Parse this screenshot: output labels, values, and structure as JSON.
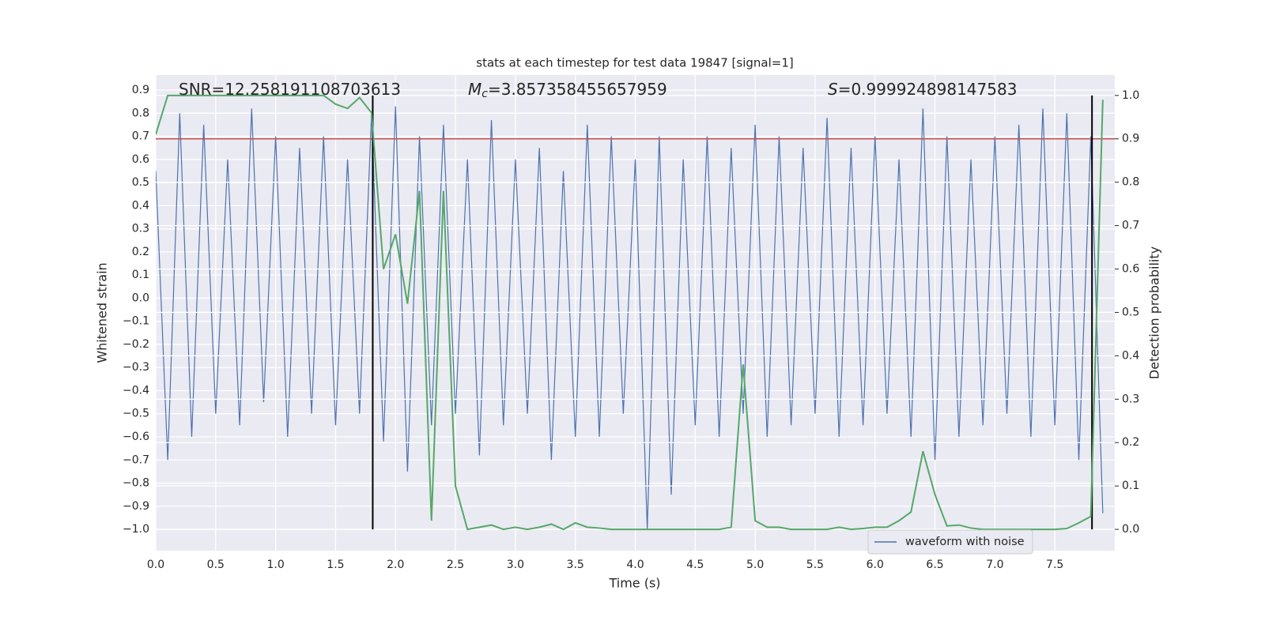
{
  "chart_data": {
    "type": "line",
    "title": "stats at each timestep for test data 19847 [signal=1]",
    "xlabel": "Time (s)",
    "ylabel": "Whitened strain",
    "y2label": "Detection probability",
    "annotations": [
      {
        "text": "SNR=12.258191108703613"
      },
      {
        "symbol": "M",
        "subscript": "c",
        "text": "=3.857358455657959"
      },
      {
        "symbol": "S",
        "text": "=0.999924898147583"
      }
    ],
    "x": [
      0.0,
      0.1,
      0.2,
      0.3,
      0.4,
      0.5,
      0.6,
      0.7,
      0.8,
      0.9,
      1.0,
      1.1,
      1.2,
      1.3,
      1.4,
      1.5,
      1.6,
      1.7,
      1.8,
      1.9,
      2.0,
      2.1,
      2.2,
      2.3,
      2.4,
      2.5,
      2.6,
      2.7,
      2.8,
      2.9,
      3.0,
      3.1,
      3.2,
      3.3,
      3.4,
      3.5,
      3.6,
      3.7,
      3.8,
      3.9,
      4.0,
      4.1,
      4.2,
      4.3,
      4.4,
      4.5,
      4.6,
      4.7,
      4.8,
      4.9,
      5.0,
      5.1,
      5.2,
      5.3,
      5.4,
      5.5,
      5.6,
      5.7,
      5.8,
      5.9,
      6.0,
      6.1,
      6.2,
      6.3,
      6.4,
      6.5,
      6.6,
      6.7,
      6.8,
      6.9,
      7.0,
      7.1,
      7.2,
      7.3,
      7.4,
      7.5,
      7.6,
      7.7,
      7.8,
      7.9
    ],
    "series": [
      {
        "name": "waveform with noise",
        "color": "#4c72b0",
        "values": [
          0.55,
          -0.7,
          0.8,
          -0.6,
          0.75,
          -0.5,
          0.6,
          -0.55,
          0.82,
          -0.45,
          0.7,
          -0.6,
          0.65,
          -0.5,
          0.7,
          -0.55,
          0.6,
          -0.5,
          0.8,
          -0.62,
          0.83,
          -0.75,
          0.7,
          -0.55,
          0.75,
          -0.5,
          0.6,
          -0.68,
          0.77,
          -0.55,
          0.6,
          -0.5,
          0.65,
          -0.7,
          0.55,
          -0.6,
          0.75,
          -0.6,
          0.7,
          -0.5,
          0.6,
          -1.0,
          0.7,
          -0.85,
          0.6,
          -0.55,
          0.7,
          -0.6,
          0.65,
          -0.5,
          0.75,
          -0.6,
          0.7,
          -0.55,
          0.65,
          -0.5,
          0.78,
          -0.6,
          0.65,
          -0.55,
          0.7,
          -0.5,
          0.6,
          -0.6,
          0.82,
          -0.7,
          0.7,
          -0.6,
          0.6,
          -0.55,
          0.7,
          -0.5,
          0.75,
          -0.6,
          0.82,
          -0.55,
          0.8,
          -0.7,
          0.7,
          -0.93
        ]
      },
      {
        "color": "#55a868",
        "axis": "y2",
        "values": [
          0.91,
          1.0,
          1.0,
          1.0,
          1.0,
          1.0,
          1.0,
          1.0,
          1.0,
          1.0,
          1.0,
          1.0,
          1.0,
          1.0,
          1.0,
          0.98,
          0.97,
          0.995,
          0.96,
          0.6,
          0.68,
          0.52,
          0.78,
          0.02,
          0.78,
          0.1,
          0.0,
          0.005,
          0.01,
          0.0,
          0.005,
          0.0,
          0.005,
          0.012,
          0.0,
          0.015,
          0.005,
          0.003,
          0.0,
          0.0,
          0.0,
          0.0,
          0.0,
          0.0,
          0.0,
          0.0,
          0.0,
          0.0,
          0.005,
          0.38,
          0.02,
          0.005,
          0.005,
          0.0,
          0.0,
          0.0,
          0.0,
          0.005,
          0.0,
          0.002,
          0.005,
          0.005,
          0.02,
          0.04,
          0.18,
          0.08,
          0.008,
          0.01,
          0.003,
          0.0,
          0.0,
          0.0,
          0.0,
          0.0,
          0.0,
          0.0,
          0.002,
          0.015,
          0.03,
          0.99
        ]
      }
    ],
    "hlines": [
      {
        "value": 0.9,
        "axis": "y2",
        "color": "#c44e52"
      }
    ],
    "vlines": {
      "values": [
        1.81,
        7.81
      ],
      "color": "#000000",
      "y2range": [
        0,
        1
      ]
    },
    "xlim": [
      0,
      8
    ],
    "ylim": [
      -1.092,
      0.965
    ],
    "y2lim": [
      -0.049,
      1.047
    ],
    "xticks": [
      {
        "value": 0,
        "label": "0.0"
      },
      0.5,
      {
        "value": 1,
        "label": "1.0"
      },
      1.5,
      {
        "value": 2,
        "label": "2.0"
      },
      2.5,
      {
        "value": 3,
        "label": "3.0"
      },
      3.5,
      {
        "value": 4,
        "label": "4.0"
      },
      4.5,
      {
        "value": 5,
        "label": "5.0"
      },
      5.5,
      {
        "value": 6,
        "label": "6.0"
      },
      6.5,
      {
        "value": 7,
        "label": "7.0"
      },
      7.5
    ],
    "yticks": [
      {
        "value": -1,
        "label": "−1.0"
      },
      {
        "value": -0.9,
        "label": "−0.9"
      },
      {
        "value": -0.8,
        "label": "−0.8"
      },
      {
        "value": -0.7,
        "label": "−0.7"
      },
      {
        "value": -0.6,
        "label": "−0.6"
      },
      {
        "value": -0.5,
        "label": "−0.5"
      },
      {
        "value": -0.4,
        "label": "−0.4"
      },
      {
        "value": -0.3,
        "label": "−0.3"
      },
      {
        "value": -0.2,
        "label": "−0.2"
      },
      {
        "value": -0.1,
        "label": "−0.1"
      },
      {
        "value": 0,
        "label": "0.0"
      },
      0.1,
      0.2,
      0.3,
      0.4,
      0.5,
      0.6,
      0.7,
      0.8,
      0.9
    ],
    "y2ticks": [
      {
        "value": 0,
        "label": "0.0"
      },
      0.1,
      0.2,
      0.3,
      0.4,
      0.5,
      0.6,
      0.7,
      0.8,
      0.9,
      {
        "value": 1,
        "label": "1.0"
      }
    ],
    "grid": true,
    "y2grid": true,
    "legend": "lower right",
    "background": "#eaeaf2"
  }
}
